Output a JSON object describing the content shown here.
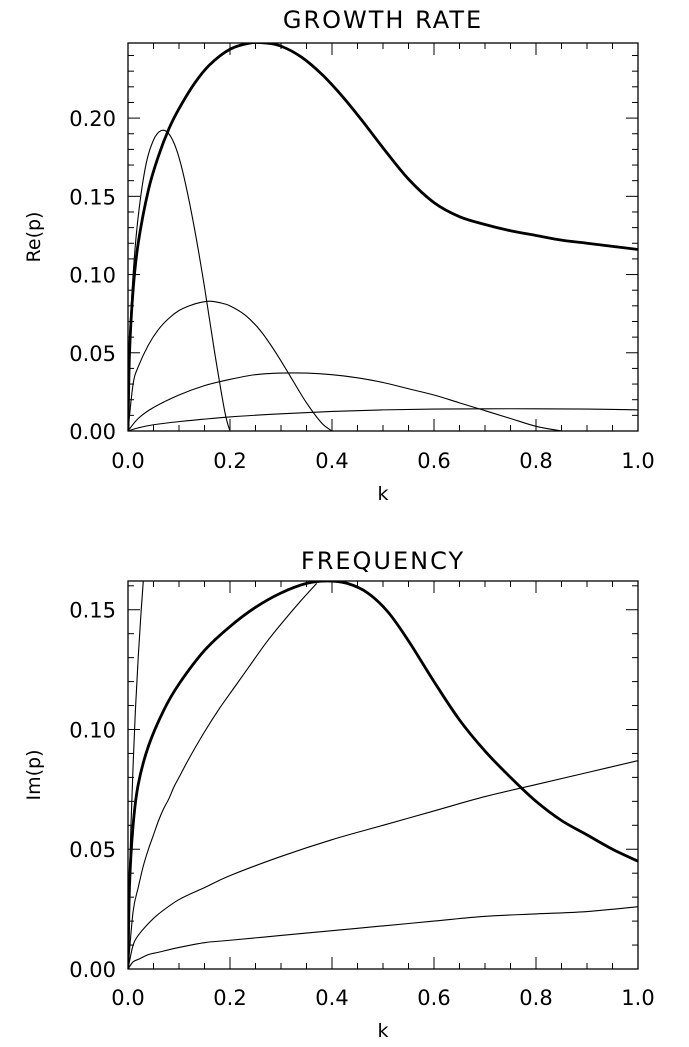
{
  "chart_data": [
    {
      "type": "line",
      "title": "GROWTH RATE",
      "xlabel": "k",
      "ylabel": "Re(p)",
      "xlim": [
        0,
        1
      ],
      "ylim": [
        0,
        0.248
      ],
      "xticks": [
        "0.0",
        "0.2",
        "0.4",
        "0.6",
        "0.8",
        "1.0"
      ],
      "yticks": [
        "0.00",
        "0.05",
        "0.10",
        "0.15",
        "0.20"
      ],
      "grid": false,
      "series": [
        {
          "style": "bold",
          "x": [
            0,
            0.003,
            0.01,
            0.02,
            0.04,
            0.06,
            0.08,
            0.1,
            0.13,
            0.16,
            0.2,
            0.24,
            0.27,
            0.3,
            0.34,
            0.38,
            0.42,
            0.46,
            0.5,
            0.55,
            0.6,
            0.65,
            0.7,
            0.75,
            0.8,
            0.85,
            0.9,
            0.95,
            1.0
          ],
          "y": [
            0,
            0.05,
            0.09,
            0.12,
            0.154,
            0.176,
            0.193,
            0.206,
            0.222,
            0.234,
            0.244,
            0.248,
            0.248,
            0.246,
            0.239,
            0.228,
            0.214,
            0.198,
            0.181,
            0.161,
            0.146,
            0.137,
            0.132,
            0.128,
            0.125,
            0.122,
            0.12,
            0.118,
            0.116
          ]
        },
        {
          "style": "thin",
          "x": [
            0,
            0.003,
            0.01,
            0.02,
            0.035,
            0.05,
            0.065,
            0.08,
            0.095,
            0.11,
            0.13,
            0.15,
            0.17,
            0.19,
            0.2
          ],
          "y": [
            0,
            0.055,
            0.1,
            0.137,
            0.17,
            0.186,
            0.192,
            0.19,
            0.18,
            0.162,
            0.13,
            0.092,
            0.05,
            0.012,
            0
          ]
        },
        {
          "style": "thin",
          "x": [
            0,
            0.01,
            0.02,
            0.04,
            0.06,
            0.08,
            0.1,
            0.12,
            0.14,
            0.16,
            0.18,
            0.2,
            0.23,
            0.26,
            0.29,
            0.32,
            0.35,
            0.38,
            0.4
          ],
          "y": [
            0,
            0.03,
            0.041,
            0.055,
            0.065,
            0.072,
            0.077,
            0.08,
            0.082,
            0.083,
            0.082,
            0.08,
            0.074,
            0.064,
            0.05,
            0.034,
            0.018,
            0.005,
            0
          ]
        },
        {
          "style": "thin",
          "x": [
            0,
            0.02,
            0.05,
            0.1,
            0.15,
            0.2,
            0.25,
            0.3,
            0.35,
            0.4,
            0.45,
            0.5,
            0.55,
            0.6,
            0.65,
            0.7,
            0.75,
            0.8,
            0.85
          ],
          "y": [
            0,
            0.008,
            0.015,
            0.023,
            0.029,
            0.033,
            0.036,
            0.037,
            0.037,
            0.036,
            0.034,
            0.031,
            0.027,
            0.023,
            0.018,
            0.013,
            0.008,
            0.003,
            0
          ]
        },
        {
          "style": "thin",
          "x": [
            0,
            0.02,
            0.05,
            0.1,
            0.2,
            0.3,
            0.4,
            0.5,
            0.6,
            0.7,
            0.8,
            0.9,
            1.0
          ],
          "y": [
            0,
            0.002,
            0.004,
            0.006,
            0.009,
            0.011,
            0.0125,
            0.0135,
            0.014,
            0.0142,
            0.0142,
            0.014,
            0.0135
          ]
        }
      ]
    },
    {
      "type": "line",
      "title": "FREQUENCY",
      "xlabel": "k",
      "ylabel": "Im(p)",
      "xlim": [
        0,
        1
      ],
      "ylim": [
        0,
        0.162
      ],
      "xticks": [
        "0.0",
        "0.2",
        "0.4",
        "0.6",
        "0.8",
        "1.0"
      ],
      "yticks": [
        "0.00",
        "0.05",
        "0.10",
        "0.15"
      ],
      "grid": false,
      "series": [
        {
          "style": "bold",
          "x": [
            0,
            0.003,
            0.01,
            0.02,
            0.04,
            0.07,
            0.1,
            0.15,
            0.2,
            0.25,
            0.3,
            0.35,
            0.39,
            0.43,
            0.47,
            0.51,
            0.55,
            0.6,
            0.65,
            0.7,
            0.75,
            0.8,
            0.85,
            0.9,
            0.95,
            1.0
          ],
          "y": [
            0,
            0.035,
            0.06,
            0.077,
            0.093,
            0.108,
            0.119,
            0.133,
            0.143,
            0.151,
            0.157,
            0.161,
            0.162,
            0.161,
            0.157,
            0.149,
            0.137,
            0.12,
            0.104,
            0.091,
            0.08,
            0.07,
            0.062,
            0.056,
            0.05,
            0.045
          ]
        },
        {
          "style": "thin",
          "x": [
            0,
            0.01,
            0.02,
            0.03,
            0.04,
            0.05,
            0.06,
            0.07,
            0.08,
            0.09,
            0.1,
            0.12,
            0.15,
            0.18,
            0.21,
            0.24,
            0.27,
            0.3,
            0.34,
            0.37
          ],
          "y": [
            0,
            0.024,
            0.034,
            0.043,
            0.05,
            0.056,
            0.062,
            0.067,
            0.071,
            0.076,
            0.08,
            0.088,
            0.099,
            0.109,
            0.118,
            0.127,
            0.136,
            0.144,
            0.154,
            0.161
          ]
        },
        {
          "style": "thin",
          "x": [
            0,
            0.003,
            0.01,
            0.015,
            0.02,
            0.025,
            0.03
          ],
          "y": [
            0,
            0.04,
            0.085,
            0.11,
            0.13,
            0.147,
            0.162
          ]
        },
        {
          "style": "thin",
          "x": [
            0,
            0.01,
            0.02,
            0.04,
            0.06,
            0.1,
            0.15,
            0.2,
            0.3,
            0.4,
            0.5,
            0.6,
            0.7,
            0.8,
            0.9,
            1.0
          ],
          "y": [
            0,
            0.01,
            0.014,
            0.019,
            0.023,
            0.029,
            0.034,
            0.039,
            0.047,
            0.054,
            0.06,
            0.066,
            0.072,
            0.077,
            0.082,
            0.087
          ]
        },
        {
          "style": "thin",
          "x": [
            0,
            0.01,
            0.02,
            0.04,
            0.06,
            0.1,
            0.15,
            0.2,
            0.3,
            0.4,
            0.5,
            0.6,
            0.7,
            0.8,
            0.9,
            1.0
          ],
          "y": [
            0,
            0.003,
            0.004,
            0.006,
            0.007,
            0.009,
            0.011,
            0.012,
            0.014,
            0.016,
            0.018,
            0.02,
            0.022,
            0.023,
            0.024,
            0.026
          ]
        }
      ]
    }
  ]
}
